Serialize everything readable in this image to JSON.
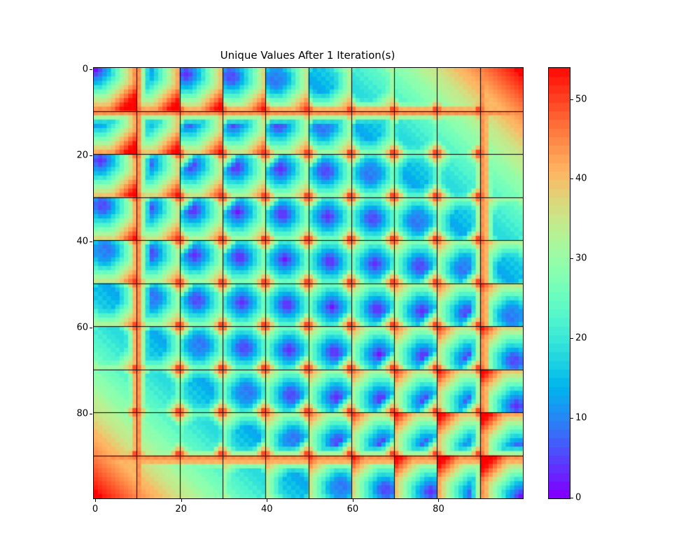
{
  "title": "Unique Values After 1 Iteration(s)",
  "chart_data": {
    "type": "heatmap",
    "title": "Unique Values After 1 Iteration(s)",
    "grid_rows": 100,
    "grid_cols": 100,
    "block_size": 10,
    "x_ticks": [
      0,
      20,
      40,
      60,
      80
    ],
    "y_ticks": [
      0,
      20,
      40,
      60,
      80
    ],
    "vmin": 0,
    "vmax": 54,
    "colormap": "rainbow",
    "colormap_colors": {
      "low": "#8000ff",
      "mid": "#80ffb4",
      "high": "#ff0000"
    },
    "colorbar_ticks": [
      0,
      10,
      20,
      30,
      40,
      50
    ],
    "colorbar_bands": 50,
    "gridline_color": "#000000",
    "background_color": "#ffffff",
    "value_model": {
      "base_coeff": 0.0055,
      "block_slope": 4.8,
      "octagonal_weight": 0.73,
      "wall_lines": [
        9.6,
        90.4
      ],
      "wall_amplitude": 48,
      "wall_decay": 13,
      "hotspot_amplitude": 55,
      "hotspot_decay": 9,
      "hotspot_offset": 0.6,
      "stripe_amplitude": 0.8
    },
    "block_min_values": [
      [
        0,
        0.6,
        2.2,
        5,
        8.8,
        13.8,
        19.8,
        27,
        35.2,
        44.6
      ],
      [
        0.6,
        0,
        0.6,
        2.2,
        5,
        8.8,
        13.8,
        19.8,
        27,
        35.2
      ],
      [
        2.2,
        0.6,
        0,
        0.6,
        2.2,
        5,
        8.8,
        13.8,
        19.8,
        27
      ],
      [
        5,
        2.2,
        0.6,
        0,
        0.6,
        2.2,
        5,
        8.8,
        13.8,
        19.8
      ],
      [
        8.8,
        5,
        2.2,
        0.6,
        0,
        0.6,
        2.2,
        5,
        8.8,
        13.8
      ],
      [
        13.8,
        8.8,
        5,
        2.2,
        0.6,
        0,
        0.6,
        2.2,
        5,
        8.8
      ],
      [
        19.8,
        13.8,
        8.8,
        5,
        2.2,
        0.6,
        0,
        0.6,
        2.2,
        5
      ],
      [
        27,
        19.8,
        13.8,
        8.8,
        5,
        2.2,
        0.6,
        0,
        0.6,
        2.2
      ],
      [
        35.2,
        27,
        19.8,
        13.8,
        8.8,
        5,
        2.2,
        0.6,
        0,
        0.6
      ],
      [
        44.6,
        35.2,
        27,
        19.8,
        13.8,
        8.8,
        5,
        2.2,
        0.6,
        0
      ]
    ]
  }
}
